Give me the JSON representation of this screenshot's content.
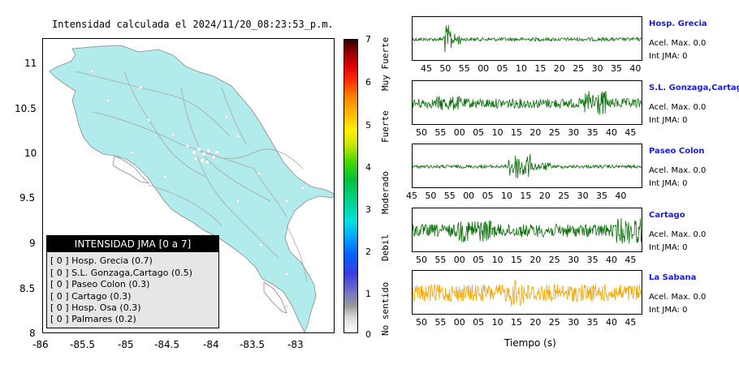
{
  "map": {
    "title": "Intensidad calculada el 2024/11/20_08:23:53_p.m.",
    "y_ticks": [
      "11",
      "10.5",
      "10",
      "9.5",
      "9",
      "8.5",
      "8"
    ],
    "x_ticks": [
      "-86",
      "-85.5",
      "-85",
      "-84.5",
      "-84",
      "-83.5",
      "-83"
    ]
  },
  "legend": {
    "header": "INTENSIDAD JMA [0 a 7]",
    "items": [
      "[ 0 ]  Hosp. Grecia (0.7)",
      "[ 0 ]  S.L. Gonzaga,Cartago (0.5)",
      "[ 0 ]  Paseo Colon (0.3)",
      "[ 0 ]  Cartago (0.3)",
      "[ 0 ]  Hosp. Osa (0.3)",
      "[ 0 ]  Palmares (0.2)"
    ]
  },
  "colorbar": {
    "numbers": [
      "7",
      "6",
      "5",
      "4",
      "3",
      "2",
      "1",
      "0"
    ],
    "words": [
      "Muy Fuerte",
      "Fuerte",
      "Moderado",
      "Debil",
      "No sentido"
    ]
  },
  "traces": {
    "xlabel": "Tiempo (s)",
    "colors": {
      "normal": "#0a6e0a",
      "highlight": "#f5a500"
    },
    "stations": [
      {
        "name": "Hosp. Grecia",
        "acel": "Acel. Max. 0.0",
        "int": "Int JMA: 0",
        "ticks": [
          "45",
          "50",
          "55",
          "00",
          "05",
          "10",
          "15",
          "20",
          "25",
          "30",
          "35",
          "40"
        ]
      },
      {
        "name": "S.L. Gonzaga,Cartago",
        "acel": "Acel. Max. 0.0",
        "int": "Int JMA: 0",
        "ticks": [
          "50",
          "55",
          "00",
          "05",
          "10",
          "15",
          "20",
          "25",
          "30",
          "35",
          "40",
          "45"
        ]
      },
      {
        "name": "Paseo Colon",
        "acel": "Acel. Max. 0.0",
        "int": "Int JMA: 0",
        "ticks": [
          "45",
          "50",
          "55",
          "00",
          "05",
          "10",
          "15",
          "20",
          "25",
          "30",
          "35",
          "40"
        ]
      },
      {
        "name": "Cartago",
        "acel": "Acel. Max. 0.0",
        "int": "Int JMA: 0",
        "ticks": [
          "50",
          "55",
          "00",
          "05",
          "10",
          "15",
          "20",
          "25",
          "30",
          "35",
          "40",
          "45"
        ]
      },
      {
        "name": "La Sabana",
        "acel": "Acel. Max. 0.0",
        "int": "Int JMA: 0",
        "ticks": [
          "50",
          "55",
          "00",
          "05",
          "10",
          "15",
          "20",
          "25",
          "30",
          "35",
          "40",
          "45"
        ]
      }
    ]
  }
}
